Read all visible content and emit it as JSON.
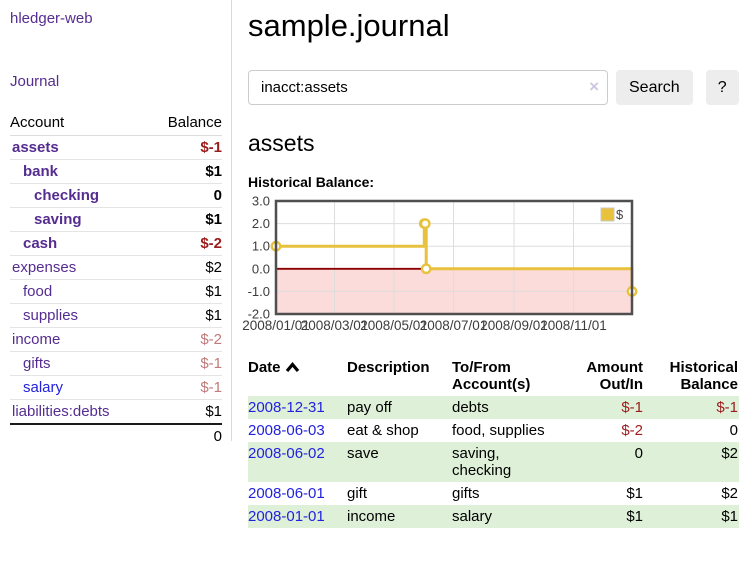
{
  "app": {
    "brand": "hledger-web",
    "nav_journal": "Journal"
  },
  "sidebar": {
    "header": {
      "account": "Account",
      "balance": "Balance"
    },
    "accounts": [
      {
        "name": "assets",
        "depth": 1,
        "inacct": true,
        "balance": "$-1"
      },
      {
        "name": "bank",
        "depth": 2,
        "inacct": true,
        "balance": "$1"
      },
      {
        "name": "checking",
        "depth": 3,
        "inacct": true,
        "balance": "0"
      },
      {
        "name": "saving",
        "depth": 3,
        "inacct": true,
        "balance": "$1"
      },
      {
        "name": "cash",
        "depth": 2,
        "inacct": true,
        "balance": "$-2"
      },
      {
        "name": "expenses",
        "depth": 1,
        "inacct": false,
        "balance": "$2"
      },
      {
        "name": "food",
        "depth": 2,
        "inacct": false,
        "balance": "$1"
      },
      {
        "name": "supplies",
        "depth": 2,
        "inacct": false,
        "balance": "$1"
      },
      {
        "name": "income",
        "depth": 1,
        "inacct": false,
        "balance": "$-2"
      },
      {
        "name": "gifts",
        "depth": 2,
        "inacct": false,
        "balance": "$-1"
      },
      {
        "name": "salary",
        "depth": 2,
        "inacct": false,
        "balance": "$-1",
        "link_blue": true
      },
      {
        "name": "liabilities:debts",
        "depth": 1,
        "inacct": false,
        "balance": "$1"
      }
    ],
    "total": "0"
  },
  "header": {
    "title": "sample.journal"
  },
  "search": {
    "value": "inacct:assets",
    "clear_icon": "×",
    "button": "Search",
    "help_button": "?"
  },
  "account_page": {
    "title": "assets",
    "chart_label": "Historical Balance:"
  },
  "chart_data": {
    "type": "line",
    "title": "Historical Balance",
    "series": [
      {
        "name": "$",
        "color": "#e8c23d",
        "step": true,
        "points": [
          [
            "2008-01-01",
            1
          ],
          [
            "2008-06-01",
            2
          ],
          [
            "2008-06-02",
            2
          ],
          [
            "2008-06-03",
            0
          ],
          [
            "2008-12-31",
            -1
          ]
        ]
      }
    ],
    "x_ticks": [
      "2008/01/01",
      "2008/03/01",
      "2008/05/01",
      "2008/07/01",
      "2008/09/01",
      "2008/11/01"
    ],
    "y_ticks": [
      3.0,
      2.0,
      1.0,
      0.0,
      -1.0,
      -2.0
    ],
    "xlim": [
      "2008-01-01",
      "2008-12-31"
    ],
    "ylim": [
      -2,
      3
    ],
    "grid": true,
    "legend_position": "top-right",
    "colors": {
      "negative_region_fill": "#fcdbdb",
      "zero_line": "#8b0000",
      "gridline": "#dddddd",
      "border": "#4f4f4f",
      "tick_text": "#3c3c3c"
    }
  },
  "register": {
    "columns": [
      {
        "label": "Date",
        "align": "left",
        "sorted": "asc"
      },
      {
        "label": "Description",
        "align": "left"
      },
      {
        "label": "To/From Account(s)",
        "align": "left"
      },
      {
        "label": "Amount Out/In",
        "align": "right"
      },
      {
        "label": "Historical Balance",
        "align": "right"
      }
    ],
    "rows": [
      {
        "date": "2008-12-31",
        "description": "pay off",
        "accounts": "debts",
        "amount": "$-1",
        "balance": "$-1"
      },
      {
        "date": "2008-06-03",
        "description": "eat & shop",
        "accounts": "food, supplies",
        "amount": "$-2",
        "balance": "0"
      },
      {
        "date": "2008-06-02",
        "description": "save",
        "accounts": "saving, checking",
        "amount": "0",
        "balance": "$2"
      },
      {
        "date": "2008-06-01",
        "description": "gift",
        "accounts": "gifts",
        "amount": "$1",
        "balance": "$2"
      },
      {
        "date": "2008-01-01",
        "description": "income",
        "accounts": "salary",
        "amount": "$1",
        "balance": "$1"
      }
    ]
  }
}
